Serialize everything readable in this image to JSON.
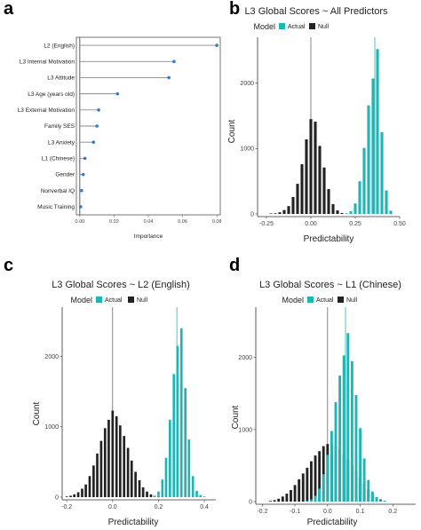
{
  "colors": {
    "actual": "#1fb5b5",
    "null": "#222222",
    "stem": "#8a8a8a",
    "dot": "#2b7bd6"
  },
  "chart_data": [
    {
      "panel": "a",
      "type": "lollipop",
      "title": "",
      "xlabel": "Importance",
      "ylabel": "",
      "xlim": [
        -0.002,
        0.082
      ],
      "xticks": [
        "0.00",
        "0.02",
        "0.04",
        "0.06",
        "0.08"
      ],
      "categories": [
        "L2 (English)",
        "L3 Internal Motivation",
        "L3 Attitude",
        "L3 Age (years old)",
        "L3 External Motivation",
        "Family SES",
        "L3 Anxiety",
        "L1 (Chinese)",
        "Gender",
        "Nonverbal IQ",
        "Music Training"
      ],
      "values": [
        0.08,
        0.055,
        0.052,
        0.022,
        0.011,
        0.01,
        0.008,
        0.003,
        0.002,
        0.001,
        0.0005
      ]
    },
    {
      "panel": "b",
      "type": "histogram",
      "title": "L3 Global Scores ~ All Predictors",
      "legend_title": "Model",
      "legend": [
        "Actual",
        "Null"
      ],
      "xlabel": "Predictability",
      "ylabel": "Count",
      "xlim": [
        -0.3,
        0.5
      ],
      "ylim": [
        0,
        2700
      ],
      "xticks": [
        "-0.25",
        "0.00",
        "0.25",
        "0.50"
      ],
      "yticks": [
        "0",
        "1000",
        "2000"
      ],
      "bin_width": 0.025,
      "null_mean": 0.0,
      "actual_mean": 0.36,
      "null_bins": {
        "x": [
          -0.225,
          -0.2,
          -0.175,
          -0.15,
          -0.125,
          -0.1,
          -0.075,
          -0.05,
          -0.025,
          0.0,
          0.025,
          0.05,
          0.075,
          0.1,
          0.125,
          0.15,
          0.175
        ],
        "y": [
          5,
          10,
          25,
          60,
          120,
          260,
          460,
          760,
          1140,
          1450,
          1410,
          1040,
          710,
          380,
          150,
          55,
          15
        ]
      },
      "actual_bins": {
        "x": [
          0.2,
          0.225,
          0.25,
          0.275,
          0.3,
          0.325,
          0.35,
          0.375,
          0.4,
          0.425,
          0.45
        ],
        "y": [
          10,
          40,
          160,
          500,
          1010,
          1660,
          2070,
          2520,
          1250,
          360,
          50
        ]
      }
    },
    {
      "panel": "c",
      "type": "histogram",
      "title": "L3 Global Scores ~ L2 (English)",
      "legend_title": "Model",
      "legend": [
        "Actual",
        "Null"
      ],
      "xlabel": "Predictability",
      "ylabel": "Count",
      "xlim": [
        -0.22,
        0.45
      ],
      "ylim": [
        0,
        2700
      ],
      "xticks": [
        "-0.2",
        "0.0",
        "0.2",
        "0.4"
      ],
      "yticks": [
        "0",
        "1000",
        "2000"
      ],
      "bin_width": 0.0167,
      "null_mean": 0.0,
      "actual_mean": 0.28,
      "null_bins": {
        "x": [
          -0.2,
          -0.183,
          -0.167,
          -0.15,
          -0.133,
          -0.117,
          -0.1,
          -0.083,
          -0.067,
          -0.05,
          -0.033,
          -0.017,
          0.0,
          0.017,
          0.033,
          0.05,
          0.067,
          0.083,
          0.1,
          0.117,
          0.133,
          0.15,
          0.167,
          0.183,
          0.2
        ],
        "y": [
          10,
          20,
          40,
          70,
          120,
          180,
          300,
          450,
          620,
          800,
          980,
          1100,
          1230,
          1150,
          1020,
          870,
          700,
          520,
          360,
          240,
          140,
          80,
          40,
          20,
          10
        ]
      },
      "actual_bins": {
        "x": [
          0.183,
          0.2,
          0.217,
          0.233,
          0.25,
          0.267,
          0.283,
          0.3,
          0.317,
          0.333,
          0.35,
          0.367,
          0.383,
          0.4
        ],
        "y": [
          20,
          80,
          250,
          560,
          1100,
          1750,
          2150,
          2400,
          1550,
          820,
          300,
          90,
          30,
          10
        ]
      }
    },
    {
      "panel": "d",
      "type": "histogram",
      "title": "L3 Global Scores ~ L1 (Chinese)",
      "legend_title": "Model",
      "legend": [
        "Actual",
        "Null"
      ],
      "xlabel": "Predictability",
      "ylabel": "Count",
      "xlim": [
        -0.22,
        0.27
      ],
      "ylim": [
        0,
        2700
      ],
      "xticks": [
        "-0.2",
        "-0.1",
        "0.0",
        "0.1",
        "0.2"
      ],
      "yticks": [
        "0",
        "1000",
        "2000"
      ],
      "bin_width": 0.0125,
      "null_mean": 0.0,
      "actual_mean": 0.055,
      "null_bins": {
        "x": [
          -0.175,
          -0.1625,
          -0.15,
          -0.1375,
          -0.125,
          -0.1125,
          -0.1,
          -0.0875,
          -0.075,
          -0.0625,
          -0.05,
          -0.0375,
          -0.025,
          -0.0125,
          0.0,
          0.0125,
          0.025,
          0.0375,
          0.05,
          0.0625,
          0.075,
          0.0875,
          0.1,
          0.1125,
          0.125,
          0.1375,
          0.15,
          0.1625,
          0.175
        ],
        "y": [
          10,
          20,
          40,
          70,
          110,
          160,
          230,
          310,
          390,
          470,
          560,
          640,
          700,
          770,
          800,
          790,
          770,
          720,
          660,
          580,
          500,
          420,
          330,
          250,
          170,
          110,
          60,
          30,
          10
        ]
      },
      "actual_bins": {
        "x": [
          -0.0625,
          -0.05,
          -0.0375,
          -0.025,
          -0.0125,
          0.0,
          0.0125,
          0.025,
          0.0375,
          0.05,
          0.0625,
          0.075,
          0.0875,
          0.1,
          0.1125,
          0.125,
          0.1375,
          0.15,
          0.1625,
          0.175
        ],
        "y": [
          10,
          30,
          80,
          180,
          380,
          650,
          980,
          1380,
          1750,
          2030,
          2340,
          1950,
          1480,
          1020,
          600,
          300,
          140,
          60,
          20,
          10
        ]
      }
    }
  ]
}
